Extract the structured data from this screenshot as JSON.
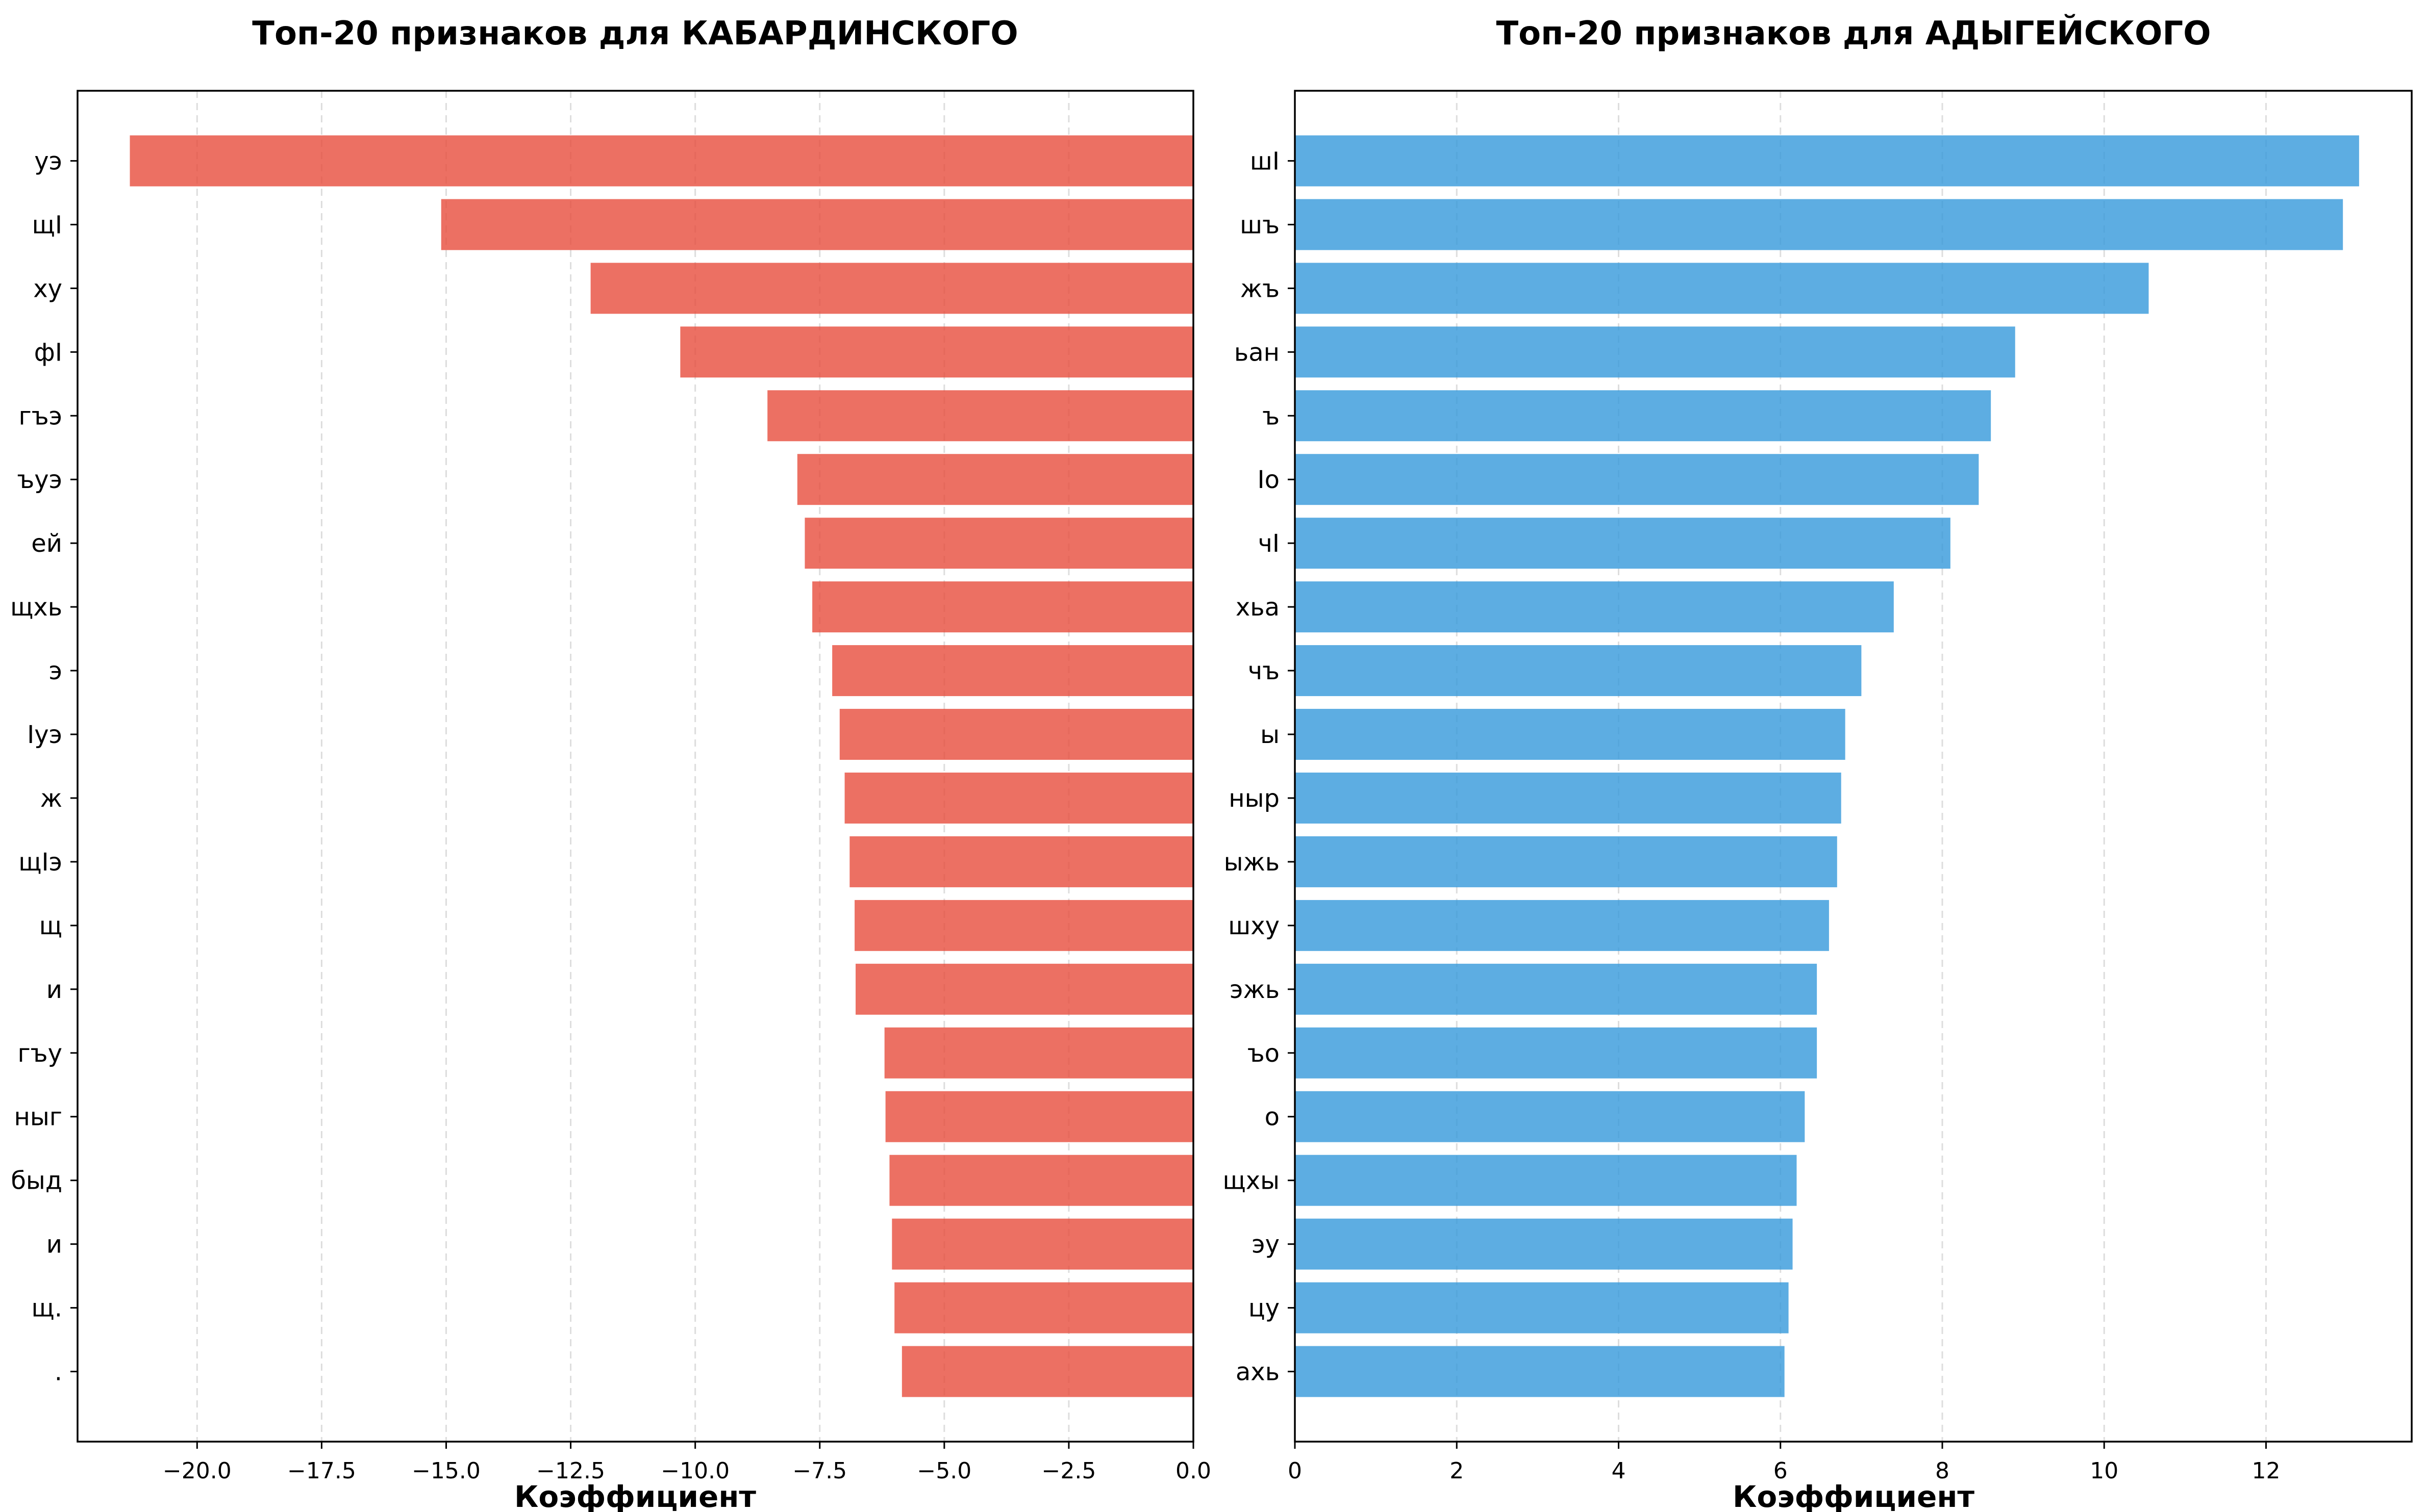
{
  "chart_data": [
    {
      "type": "bar",
      "orientation": "horizontal",
      "title": "Топ-20 признаков для КАБАРДИНСКОГО",
      "xlabel": "Коэффициент",
      "ylabel": "",
      "xlim": [
        -22.4,
        0
      ],
      "xticks": [
        -20,
        -17.5,
        -15,
        -12.5,
        -10,
        -7.5,
        -5,
        -2.5,
        0
      ],
      "xtick_labels": [
        "−20.0",
        "−17.5",
        "−15.0",
        "−12.5",
        "−10.0",
        "−7.5",
        "−5.0",
        "−2.5",
        "0.0"
      ],
      "grid": "x, dashed",
      "color": "#e74c3c",
      "categories": [
        "уэ",
        "щI",
        "ху",
        "фI",
        "гъэ",
        "ъуэ",
        "ей",
        "щхь",
        "э",
        "Iуэ",
        "ж",
        "щIэ",
        "щ",
        "и ",
        "гъу",
        "ныг",
        "быд",
        "и ",
        "щ.",
        "."
      ],
      "values": [
        -21.35,
        -15.1,
        -12.1,
        -10.3,
        -8.55,
        -7.95,
        -7.8,
        -7.65,
        -7.25,
        -7.1,
        -7.0,
        -6.9,
        -6.8,
        -6.78,
        -6.2,
        -6.18,
        -6.1,
        -6.05,
        -6.0,
        -5.85
      ]
    },
    {
      "type": "bar",
      "orientation": "horizontal",
      "title": "Топ-20 признаков для АДЫГЕЙСКОГО",
      "xlabel": "Коэффициент",
      "ylabel": "",
      "xlim": [
        0,
        13.8
      ],
      "xticks": [
        0,
        2,
        4,
        6,
        8,
        10,
        12
      ],
      "xtick_labels": [
        "0",
        "2",
        "4",
        "6",
        "8",
        "10",
        "12"
      ],
      "grid": "x, dashed",
      "color": "#3498db",
      "categories": [
        "шI",
        "шъ",
        "жъ",
        "ьан",
        "ъ",
        "Iо",
        "чI",
        "хьа",
        "чъ",
        "ы",
        "ныр",
        "ыжь",
        "шху",
        "эжь",
        "ъо",
        "о",
        "щхы",
        "эу",
        "цу",
        "ахь"
      ],
      "values": [
        13.15,
        12.95,
        10.55,
        8.9,
        8.6,
        8.45,
        8.1,
        7.4,
        7.0,
        6.8,
        6.75,
        6.7,
        6.6,
        6.45,
        6.45,
        6.3,
        6.2,
        6.15,
        6.1,
        6.05
      ]
    }
  ]
}
